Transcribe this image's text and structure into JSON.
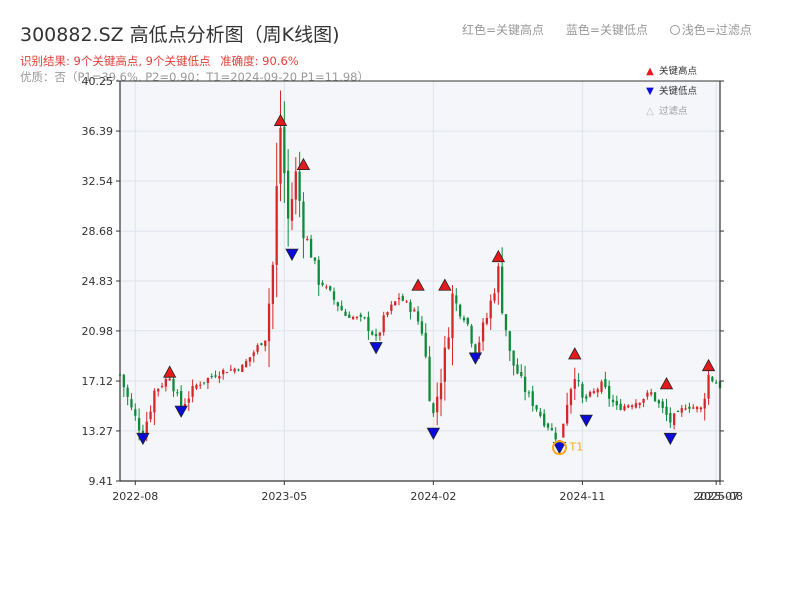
{
  "header": {
    "title": "300882.SZ 高低点分析图（周K线图)",
    "result_peaks": "识别结果: 9个关键高点, 9个关键低点",
    "result_accuracy": "准确度: 90.6%",
    "quality": "优质：否（P1=39.6%, P2=0.90；T1=2024-09-20 P1=11.98）"
  },
  "top_legend": {
    "high": "红色=关键高点",
    "low": "蓝色=关键低点",
    "filtered": "浅色=过滤点"
  },
  "marker_legend": {
    "high": "关键高点",
    "low": "关键低点",
    "filtered": "过滤点"
  },
  "colors": {
    "up": "#d62728",
    "down": "#0e8a3b",
    "high_marker": "#e41a1c",
    "low_marker": "#0b0bd9",
    "t1_ring": "#f5a623",
    "plot_bg": "#f4f6f9",
    "grid": "#dfe3ea",
    "axis": "#333333"
  },
  "chart_data": {
    "type": "candlestick",
    "interval": "weekly",
    "ylim": [
      9.41,
      40.25
    ],
    "yticks": [
      9.41,
      13.27,
      17.12,
      20.98,
      24.83,
      28.68,
      32.54,
      36.39,
      40.25
    ],
    "ytick_labels": [
      "9.41",
      "13.27",
      "17.12",
      "20.98",
      "24.83",
      "28.68",
      "32.54",
      "36.39",
      "40.25"
    ],
    "xlim": [
      "2022-07-08",
      "2025-07-11"
    ],
    "xticks": [
      {
        "date": "2022-08-05",
        "label": "2022-08"
      },
      {
        "date": "2023-05-05",
        "label": "2023-05"
      },
      {
        "date": "2024-02-02",
        "label": "2024-02"
      },
      {
        "date": "2024-11-01",
        "label": "2024-11"
      },
      {
        "date": "2025-07-04",
        "label": "2025-07"
      },
      {
        "date": "2025-07-11",
        "label": "2025-08"
      }
    ],
    "anchors": [
      [
        "2022-07-08",
        17.6
      ],
      [
        "2022-07-29",
        14.9
      ],
      [
        "2022-08-19",
        13.0
      ],
      [
        "2022-09-09",
        16.3
      ],
      [
        "2022-10-07",
        17.5
      ],
      [
        "2022-10-28",
        15.1
      ],
      [
        "2022-11-25",
        16.8
      ],
      [
        "2023-01-06",
        17.8
      ],
      [
        "2023-02-17",
        18.2
      ],
      [
        "2023-03-31",
        20.5
      ],
      [
        "2023-04-14",
        26.0
      ],
      [
        "2023-04-28",
        36.8
      ],
      [
        "2023-05-12",
        29.5
      ],
      [
        "2023-05-26",
        33.0
      ],
      [
        "2023-06-09",
        29.0
      ],
      [
        "2023-07-07",
        25.0
      ],
      [
        "2023-08-25",
        22.2
      ],
      [
        "2023-09-29",
        21.8
      ],
      [
        "2023-10-20",
        20.3
      ],
      [
        "2023-11-10",
        22.4
      ],
      [
        "2023-12-01",
        23.6
      ],
      [
        "2023-12-29",
        22.5
      ],
      [
        "2024-01-12",
        21.0
      ],
      [
        "2024-02-02",
        14.5
      ],
      [
        "2024-02-23",
        19.0
      ],
      [
        "2024-03-08",
        23.5
      ],
      [
        "2024-04-05",
        21.5
      ],
      [
        "2024-04-19",
        19.5
      ],
      [
        "2024-05-10",
        22.0
      ],
      [
        "2024-05-31",
        25.5
      ],
      [
        "2024-06-21",
        19.0
      ],
      [
        "2024-07-19",
        16.5
      ],
      [
        "2024-08-23",
        14.0
      ],
      [
        "2024-09-20",
        12.5
      ],
      [
        "2024-10-04",
        15.8
      ],
      [
        "2024-10-18",
        18.0
      ],
      [
        "2024-11-01",
        15.5
      ],
      [
        "2024-12-06",
        16.8
      ],
      [
        "2025-01-03",
        15.0
      ],
      [
        "2025-02-07",
        15.5
      ],
      [
        "2025-03-07",
        16.2
      ],
      [
        "2025-04-11",
        14.0
      ],
      [
        "2025-05-09",
        15.2
      ],
      [
        "2025-06-06",
        15.0
      ],
      [
        "2025-06-20",
        17.5
      ],
      [
        "2025-07-11",
        16.7
      ]
    ],
    "key_highs": [
      {
        "date": "2022-10-07",
        "price": 17.8
      },
      {
        "date": "2023-04-28",
        "price": 37.2
      },
      {
        "date": "2023-06-09",
        "price": 33.8
      },
      {
        "date": "2024-01-05",
        "price": 24.5
      },
      {
        "date": "2024-02-23",
        "price": 24.5
      },
      {
        "date": "2024-05-31",
        "price": 26.7
      },
      {
        "date": "2024-10-18",
        "price": 19.2
      },
      {
        "date": "2025-04-04",
        "price": 16.9
      },
      {
        "date": "2025-06-20",
        "price": 18.3
      }
    ],
    "key_lows": [
      {
        "date": "2022-08-19",
        "price": 12.7
      },
      {
        "date": "2022-10-28",
        "price": 14.8
      },
      {
        "date": "2023-05-19",
        "price": 26.9
      },
      {
        "date": "2023-10-20",
        "price": 19.7
      },
      {
        "date": "2024-02-02",
        "price": 13.1
      },
      {
        "date": "2024-04-19",
        "price": 18.9
      },
      {
        "date": "2024-09-20",
        "price": 12.0
      },
      {
        "date": "2024-11-08",
        "price": 14.1
      },
      {
        "date": "2025-04-11",
        "price": 12.7
      }
    ],
    "t1": {
      "date": "2024-09-20",
      "price": 11.98,
      "label": "T1"
    }
  }
}
